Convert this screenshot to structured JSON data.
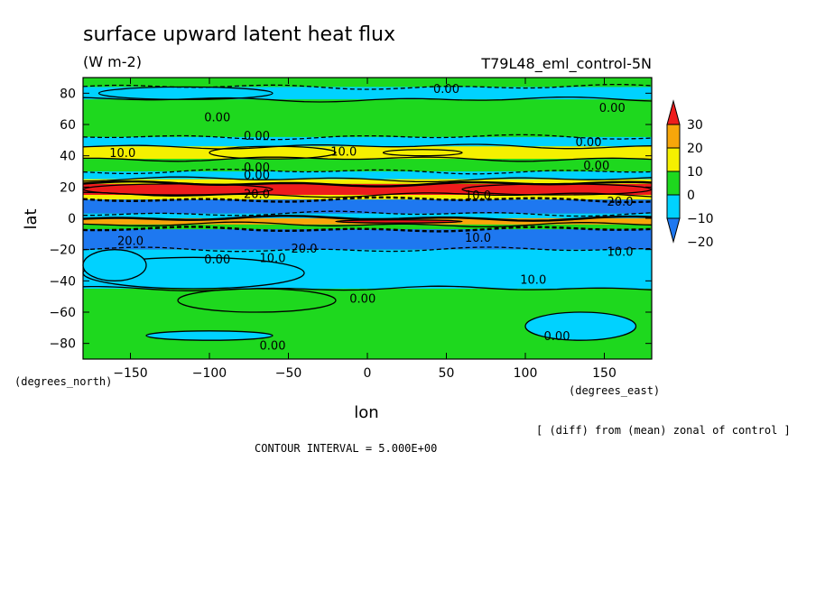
{
  "chart_data": {
    "type": "heatmap",
    "title": "surface upward latent heat flux",
    "units": "(W m-2)",
    "experiment": "T79L48_eml_control-5N",
    "xlabel": "lon",
    "ylabel": "lat",
    "xunits": "(degrees_east)",
    "yunits": "(degrees_north)",
    "note": "[ (diff) from (mean) zonal of control ]",
    "contour_interval": "CONTOUR INTERVAL = 5.000E+00",
    "xlim": [
      -180,
      180
    ],
    "ylim": [
      -90,
      90
    ],
    "xticks": [
      -150,
      -100,
      -50,
      0,
      50,
      100,
      150
    ],
    "yticks": [
      80,
      60,
      40,
      20,
      0,
      -20,
      -40,
      -60,
      -80
    ],
    "colorbar": {
      "levels": [
        "30",
        "20",
        "10",
        "0",
        "-10",
        "-20"
      ],
      "colors": [
        "#ee1c1c",
        "#f7a60a",
        "#f5f000",
        "#1ed81e",
        "#00d2ff",
        "#1e78f0"
      ]
    },
    "bands": [
      {
        "lat_top": 90,
        "lat_bottom": 84,
        "value": 0
      },
      {
        "lat_top": 84,
        "lat_bottom": 76,
        "value": -5
      },
      {
        "lat_top": 76,
        "lat_bottom": 52,
        "value": 0
      },
      {
        "lat_top": 52,
        "lat_bottom": 46,
        "value": -5
      },
      {
        "lat_top": 46,
        "lat_bottom": 38,
        "value": 10
      },
      {
        "lat_top": 38,
        "lat_bottom": 30,
        "value": 5
      },
      {
        "lat_top": 30,
        "lat_bottom": 25,
        "value": -5
      },
      {
        "lat_top": 25,
        "lat_bottom": 22,
        "value": 10
      },
      {
        "lat_top": 22,
        "lat_bottom": 15,
        "value": 30
      },
      {
        "lat_top": 15,
        "lat_bottom": 12,
        "value": 15
      },
      {
        "lat_top": 12,
        "lat_bottom": 3,
        "value": -25
      },
      {
        "lat_top": 3,
        "lat_bottom": 0,
        "value": -10
      },
      {
        "lat_top": 0,
        "lat_bottom": -4,
        "value": 20
      },
      {
        "lat_top": -4,
        "lat_bottom": -7,
        "value": 5
      },
      {
        "lat_top": -7,
        "lat_bottom": -20,
        "value": -20
      },
      {
        "lat_top": -20,
        "lat_bottom": -45,
        "value": -5
      },
      {
        "lat_top": -45,
        "lat_bottom": -90,
        "value": 0
      }
    ],
    "patches": [
      {
        "lon": [
          -170,
          -60
        ],
        "lat": [
          84,
          76
        ],
        "value": -5
      },
      {
        "lon": [
          10,
          60
        ],
        "lat": [
          44,
          40
        ],
        "value": 10
      },
      {
        "lon": [
          -100,
          -20
        ],
        "lat": [
          46,
          38
        ],
        "value": 10
      },
      {
        "lon": [
          60,
          180
        ],
        "lat": [
          22,
          15
        ],
        "value": 30
      },
      {
        "lon": [
          -180,
          -60
        ],
        "lat": [
          22,
          15
        ],
        "value": 30
      },
      {
        "lon": [
          -20,
          60
        ],
        "lat": [
          -1,
          -3
        ],
        "value": 30
      },
      {
        "lon": [
          -180,
          -40
        ],
        "lat": [
          -25,
          -45
        ],
        "value": -5
      },
      {
        "lon": [
          -180,
          -140
        ],
        "lat": [
          -40,
          -20
        ],
        "value": -5
      },
      {
        "lon": [
          -120,
          -20
        ],
        "lat": [
          -60,
          -45
        ],
        "value": 0
      },
      {
        "lon": [
          -140,
          -60
        ],
        "lat": [
          -78,
          -72
        ],
        "value": -5
      },
      {
        "lon": [
          100,
          170
        ],
        "lat": [
          -78,
          -60
        ],
        "value": -5
      }
    ],
    "contour_labels": [
      {
        "text": "0.00",
        "lon": 50,
        "lat": 83
      },
      {
        "text": "0.00",
        "lon": 155,
        "lat": 71
      },
      {
        "text": "0.00",
        "lon": -95,
        "lat": 65
      },
      {
        "text": "0.00",
        "lon": -70,
        "lat": 53
      },
      {
        "text": "0.00",
        "lon": 140,
        "lat": 49
      },
      {
        "text": "10.0",
        "lon": -155,
        "lat": 42
      },
      {
        "text": "10.0",
        "lon": -15,
        "lat": 43
      },
      {
        "text": "0.00",
        "lon": -70,
        "lat": 33
      },
      {
        "text": "0.00",
        "lon": 145,
        "lat": 34
      },
      {
        "text": "0.00",
        "lon": -70,
        "lat": 28
      },
      {
        "text": "10.0",
        "lon": 70,
        "lat": 15
      },
      {
        "text": "20.0",
        "lon": -70,
        "lat": 16
      },
      {
        "text": "20.0",
        "lon": 160,
        "lat": 11
      },
      {
        "text": "20.0",
        "lon": -150,
        "lat": -14
      },
      {
        "text": "20.0",
        "lon": -40,
        "lat": -19
      },
      {
        "text": "10.0",
        "lon": 70,
        "lat": -12
      },
      {
        "text": "10.0",
        "lon": 160,
        "lat": -21
      },
      {
        "text": "0.00",
        "lon": -95,
        "lat": -26
      },
      {
        "text": "10.0",
        "lon": -60,
        "lat": -25
      },
      {
        "text": "10.0",
        "lon": 105,
        "lat": -39
      },
      {
        "text": "0.00",
        "lon": -3,
        "lat": -51
      },
      {
        "text": "0.00",
        "lon": 120,
        "lat": -75
      },
      {
        "text": "0.00",
        "lon": -60,
        "lat": -81
      }
    ]
  }
}
